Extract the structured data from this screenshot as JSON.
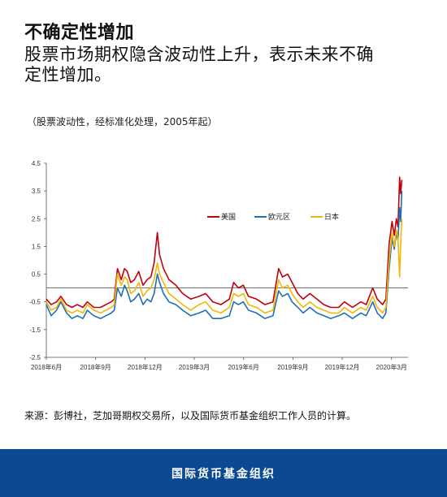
{
  "header": {
    "title": "不确定性增加",
    "subtitle_line1": "股票市场期权隐含波动性上升，表示未来不确",
    "subtitle_line2": "定性增加。"
  },
  "note": "（股票波动性，经标准化处理，2005年起）",
  "source": "来源：彭博社，芝加哥期权交易所，以及国际货币基金组织工作人员的计算。",
  "footer": {
    "org": "国际货币基金组织"
  },
  "chart_data": {
    "type": "line",
    "title": "",
    "xlabel": "",
    "ylabel": "",
    "ylim": [
      -2.5,
      4.5
    ],
    "yticks": [
      -2.5,
      -1.5,
      -0.5,
      0.5,
      1.5,
      2.5,
      3.5,
      4.5
    ],
    "xticks": [
      "2018年6月",
      "2018年9月",
      "2018年12月",
      "2019年3月",
      "2019年6月",
      "2019年9月",
      "2019年12月",
      "2020年3月"
    ],
    "x_range": [
      "2018-06",
      "2020-04"
    ],
    "reference_line": 0,
    "grid": false,
    "legend_position": "top-right",
    "colors": {
      "美国": "#c0000b",
      "欧元区": "#1f6fb5",
      "日本": "#f2b705",
      "zero_line": "#444444",
      "footer": "#0b4a92"
    },
    "series": [
      {
        "name": "美国",
        "points": [
          [
            "2018-06-01",
            -0.4
          ],
          [
            "2018-06-10",
            -0.6
          ],
          [
            "2018-06-20",
            -0.5
          ],
          [
            "2018-06-28",
            -0.3
          ],
          [
            "2018-07-08",
            -0.6
          ],
          [
            "2018-07-18",
            -0.7
          ],
          [
            "2018-07-28",
            -0.6
          ],
          [
            "2018-08-08",
            -0.7
          ],
          [
            "2018-08-16",
            -0.5
          ],
          [
            "2018-08-28",
            -0.7
          ],
          [
            "2018-09-10",
            -0.7
          ],
          [
            "2018-09-20",
            -0.6
          ],
          [
            "2018-09-30",
            -0.5
          ],
          [
            "2018-10-05",
            -0.4
          ],
          [
            "2018-10-11",
            0.7
          ],
          [
            "2018-10-18",
            0.3
          ],
          [
            "2018-10-24",
            0.7
          ],
          [
            "2018-10-29",
            0.6
          ],
          [
            "2018-11-05",
            0.2
          ],
          [
            "2018-11-12",
            0.3
          ],
          [
            "2018-11-20",
            0.6
          ],
          [
            "2018-11-28",
            0.1
          ],
          [
            "2018-12-05",
            0.3
          ],
          [
            "2018-12-12",
            0.4
          ],
          [
            "2018-12-18",
            0.9
          ],
          [
            "2018-12-24",
            2.0
          ],
          [
            "2018-12-28",
            1.2
          ],
          [
            "2019-01-05",
            0.7
          ],
          [
            "2019-01-15",
            0.3
          ],
          [
            "2019-01-28",
            0.1
          ],
          [
            "2019-02-10",
            -0.2
          ],
          [
            "2019-02-25",
            -0.4
          ],
          [
            "2019-03-10",
            -0.3
          ],
          [
            "2019-03-22",
            -0.2
          ],
          [
            "2019-04-05",
            -0.5
          ],
          [
            "2019-04-20",
            -0.6
          ],
          [
            "2019-05-05",
            -0.4
          ],
          [
            "2019-05-13",
            0.2
          ],
          [
            "2019-05-22",
            0.0
          ],
          [
            "2019-05-31",
            0.1
          ],
          [
            "2019-06-10",
            -0.3
          ],
          [
            "2019-06-25",
            -0.4
          ],
          [
            "2019-07-10",
            -0.6
          ],
          [
            "2019-07-25",
            -0.5
          ],
          [
            "2019-08-05",
            0.7
          ],
          [
            "2019-08-12",
            0.4
          ],
          [
            "2019-08-22",
            0.5
          ],
          [
            "2019-08-30",
            0.2
          ],
          [
            "2019-09-10",
            -0.2
          ],
          [
            "2019-09-20",
            -0.4
          ],
          [
            "2019-10-02",
            -0.2
          ],
          [
            "2019-10-15",
            -0.4
          ],
          [
            "2019-10-28",
            -0.6
          ],
          [
            "2019-11-10",
            -0.7
          ],
          [
            "2019-11-25",
            -0.7
          ],
          [
            "2019-12-05",
            -0.5
          ],
          [
            "2019-12-20",
            -0.7
          ],
          [
            "2020-01-05",
            -0.5
          ],
          [
            "2020-01-15",
            -0.6
          ],
          [
            "2020-01-27",
            0.0
          ],
          [
            "2020-02-05",
            -0.4
          ],
          [
            "2020-02-15",
            -0.6
          ],
          [
            "2020-02-21",
            -0.4
          ],
          [
            "2020-02-27",
            1.6
          ],
          [
            "2020-03-02",
            2.4
          ],
          [
            "2020-03-06",
            1.9
          ],
          [
            "2020-03-10",
            2.5
          ],
          [
            "2020-03-13",
            2.2
          ],
          [
            "2020-03-16",
            4.0
          ],
          [
            "2020-03-18",
            3.4
          ],
          [
            "2020-03-20",
            3.9
          ]
        ]
      },
      {
        "name": "欧元区",
        "points": [
          [
            "2018-06-01",
            -0.6
          ],
          [
            "2018-06-10",
            -1.0
          ],
          [
            "2018-06-20",
            -0.8
          ],
          [
            "2018-06-28",
            -0.5
          ],
          [
            "2018-07-08",
            -0.9
          ],
          [
            "2018-07-18",
            -1.1
          ],
          [
            "2018-07-28",
            -1.0
          ],
          [
            "2018-08-08",
            -1.1
          ],
          [
            "2018-08-16",
            -0.8
          ],
          [
            "2018-08-28",
            -1.0
          ],
          [
            "2018-09-10",
            -1.1
          ],
          [
            "2018-09-20",
            -1.0
          ],
          [
            "2018-09-30",
            -0.9
          ],
          [
            "2018-10-05",
            -0.8
          ],
          [
            "2018-10-11",
            0.0
          ],
          [
            "2018-10-18",
            -0.3
          ],
          [
            "2018-10-24",
            0.1
          ],
          [
            "2018-10-29",
            -0.1
          ],
          [
            "2018-11-05",
            -0.5
          ],
          [
            "2018-11-12",
            -0.4
          ],
          [
            "2018-11-20",
            -0.2
          ],
          [
            "2018-11-28",
            -0.6
          ],
          [
            "2018-12-05",
            -0.4
          ],
          [
            "2018-12-12",
            -0.5
          ],
          [
            "2018-12-18",
            -0.2
          ],
          [
            "2018-12-24",
            0.5
          ],
          [
            "2018-12-28",
            0.2
          ],
          [
            "2019-01-05",
            -0.2
          ],
          [
            "2019-01-15",
            -0.5
          ],
          [
            "2019-01-28",
            -0.6
          ],
          [
            "2019-02-10",
            -0.8
          ],
          [
            "2019-02-25",
            -1.0
          ],
          [
            "2019-03-10",
            -0.9
          ],
          [
            "2019-03-22",
            -0.8
          ],
          [
            "2019-04-05",
            -1.1
          ],
          [
            "2019-04-20",
            -1.1
          ],
          [
            "2019-05-05",
            -1.0
          ],
          [
            "2019-05-13",
            -0.5
          ],
          [
            "2019-05-22",
            -0.6
          ],
          [
            "2019-05-31",
            -0.5
          ],
          [
            "2019-06-10",
            -0.8
          ],
          [
            "2019-06-25",
            -0.9
          ],
          [
            "2019-07-10",
            -1.1
          ],
          [
            "2019-07-25",
            -1.0
          ],
          [
            "2019-08-05",
            -0.1
          ],
          [
            "2019-08-12",
            -0.3
          ],
          [
            "2019-08-22",
            -0.2
          ],
          [
            "2019-08-30",
            -0.5
          ],
          [
            "2019-09-10",
            -0.7
          ],
          [
            "2019-09-20",
            -0.9
          ],
          [
            "2019-10-02",
            -0.7
          ],
          [
            "2019-10-15",
            -0.9
          ],
          [
            "2019-10-28",
            -1.0
          ],
          [
            "2019-11-10",
            -1.1
          ],
          [
            "2019-11-25",
            -1.0
          ],
          [
            "2019-12-05",
            -0.9
          ],
          [
            "2019-12-20",
            -1.1
          ],
          [
            "2020-01-05",
            -0.9
          ],
          [
            "2020-01-15",
            -1.0
          ],
          [
            "2020-01-27",
            -0.5
          ],
          [
            "2020-02-05",
            -0.9
          ],
          [
            "2020-02-15",
            -1.1
          ],
          [
            "2020-02-21",
            -0.9
          ],
          [
            "2020-02-27",
            0.7
          ],
          [
            "2020-03-02",
            1.8
          ],
          [
            "2020-03-06",
            1.4
          ],
          [
            "2020-03-10",
            2.0
          ],
          [
            "2020-03-13",
            1.7
          ],
          [
            "2020-03-16",
            2.9
          ],
          [
            "2020-03-18",
            2.4
          ],
          [
            "2020-03-20",
            3.5
          ]
        ]
      },
      {
        "name": "日本",
        "points": [
          [
            "2018-06-01",
            -0.5
          ],
          [
            "2018-06-10",
            -0.8
          ],
          [
            "2018-06-20",
            -0.7
          ],
          [
            "2018-06-28",
            -0.4
          ],
          [
            "2018-07-08",
            -0.8
          ],
          [
            "2018-07-18",
            -0.9
          ],
          [
            "2018-07-28",
            -0.8
          ],
          [
            "2018-08-08",
            -0.9
          ],
          [
            "2018-08-16",
            -0.6
          ],
          [
            "2018-08-28",
            -0.8
          ],
          [
            "2018-09-10",
            -0.9
          ],
          [
            "2018-09-20",
            -0.8
          ],
          [
            "2018-09-30",
            -0.7
          ],
          [
            "2018-10-05",
            -0.6
          ],
          [
            "2018-10-11",
            0.5
          ],
          [
            "2018-10-18",
            0.1
          ],
          [
            "2018-10-24",
            0.4
          ],
          [
            "2018-10-29",
            0.3
          ],
          [
            "2018-11-05",
            -0.2
          ],
          [
            "2018-11-12",
            -0.1
          ],
          [
            "2018-11-20",
            0.2
          ],
          [
            "2018-11-28",
            -0.3
          ],
          [
            "2018-12-05",
            -0.1
          ],
          [
            "2018-12-12",
            0.0
          ],
          [
            "2018-12-18",
            0.3
          ],
          [
            "2018-12-24",
            0.9
          ],
          [
            "2018-12-28",
            0.5
          ],
          [
            "2019-01-05",
            0.2
          ],
          [
            "2019-01-15",
            -0.2
          ],
          [
            "2019-01-28",
            -0.4
          ],
          [
            "2019-02-10",
            -0.6
          ],
          [
            "2019-02-25",
            -0.8
          ],
          [
            "2019-03-10",
            -0.6
          ],
          [
            "2019-03-22",
            -0.5
          ],
          [
            "2019-04-05",
            -0.8
          ],
          [
            "2019-04-20",
            -0.9
          ],
          [
            "2019-05-05",
            -0.7
          ],
          [
            "2019-05-13",
            -0.2
          ],
          [
            "2019-05-22",
            -0.3
          ],
          [
            "2019-05-31",
            -0.2
          ],
          [
            "2019-06-10",
            -0.6
          ],
          [
            "2019-06-25",
            -0.7
          ],
          [
            "2019-07-10",
            -0.9
          ],
          [
            "2019-07-25",
            -0.8
          ],
          [
            "2019-08-05",
            0.3
          ],
          [
            "2019-08-12",
            0.0
          ],
          [
            "2019-08-22",
            0.1
          ],
          [
            "2019-08-30",
            -0.2
          ],
          [
            "2019-09-10",
            -0.5
          ],
          [
            "2019-09-20",
            -0.7
          ],
          [
            "2019-10-02",
            -0.5
          ],
          [
            "2019-10-15",
            -0.7
          ],
          [
            "2019-10-28",
            -0.8
          ],
          [
            "2019-11-10",
            -0.9
          ],
          [
            "2019-11-25",
            -0.9
          ],
          [
            "2019-12-05",
            -0.7
          ],
          [
            "2019-12-20",
            -0.9
          ],
          [
            "2020-01-05",
            -0.7
          ],
          [
            "2020-01-15",
            -0.8
          ],
          [
            "2020-01-27",
            -0.3
          ],
          [
            "2020-02-05",
            -0.7
          ],
          [
            "2020-02-15",
            -0.9
          ],
          [
            "2020-02-21",
            -0.7
          ],
          [
            "2020-02-27",
            1.0
          ],
          [
            "2020-03-02",
            2.0
          ],
          [
            "2020-03-06",
            1.5
          ],
          [
            "2020-03-10",
            2.1
          ],
          [
            "2020-03-13",
            1.8
          ],
          [
            "2020-03-16",
            0.4
          ],
          [
            "2020-03-18",
            1.6
          ],
          [
            "2020-03-20",
            2.5
          ]
        ]
      }
    ]
  }
}
